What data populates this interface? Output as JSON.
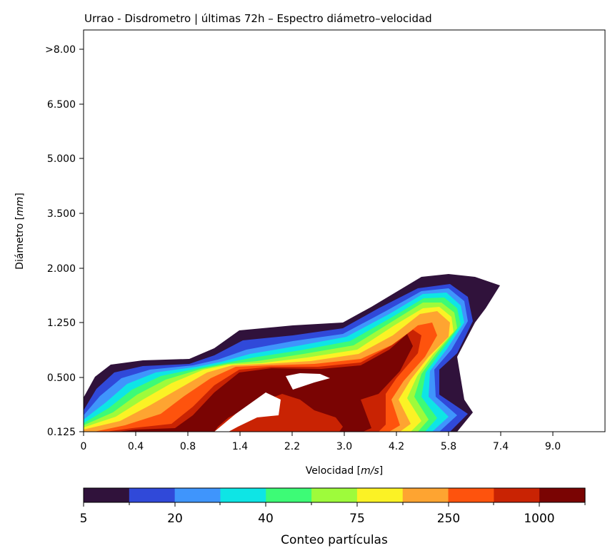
{
  "chart_data": {
    "type": "contour",
    "title": "Urrao - Disdrometro | últimas 72h – Espectro diámetro–velocidad",
    "xlabel_text": "Velocidad ",
    "xlabel_unit": "m/s",
    "ylabel_text": "Diámetro ",
    "ylabel_unit": "mm",
    "x_ticks": [
      "0",
      "0.4",
      "0.8",
      "1.4",
      "2.2",
      "3.0",
      "4.2",
      "5.8",
      "7.4",
      "9.0"
    ],
    "y_ticks": [
      "0.125",
      "0.500",
      "1.250",
      "2.000",
      "3.500",
      "5.000",
      "6.500",
      ">8.00"
    ],
    "colorbar": {
      "label": "Conteo partículas",
      "tick_labels": [
        "5",
        "20",
        "40",
        "75",
        "250",
        "1000"
      ],
      "colors": [
        "#30123b",
        "#3049d9",
        "#3f95fc",
        "#0ee5e5",
        "#3dfb76",
        "#9efb3b",
        "#fbf225",
        "#fea431",
        "#fe530d",
        "#c92303",
        "#7a0403"
      ]
    }
  }
}
